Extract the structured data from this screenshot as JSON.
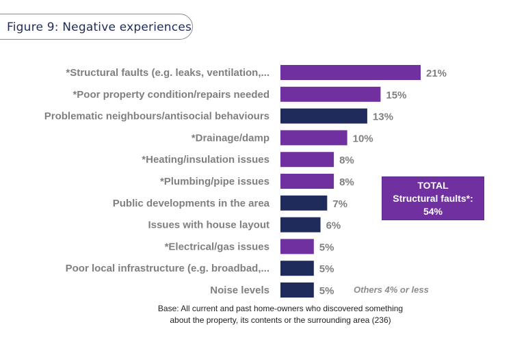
{
  "figure_title": "Figure 9: Negative experiences",
  "colors": {
    "purple": "#7030a0",
    "navy": "#1f2b5b",
    "label_grey": "#7f7f7f"
  },
  "total_box": {
    "line1": "TOTAL",
    "line2": "Structural faults*:",
    "line3": "54%",
    "color": "#7030a0"
  },
  "others_note": "Others 4% or less",
  "base_note": {
    "line1": "Base: All current and past home-owners who discovered something",
    "line2": "about the property, its contents or the surrounding area (236)"
  },
  "chart_data": {
    "type": "bar",
    "orientation": "horizontal",
    "title": "Figure 9: Negative experiences",
    "xlabel": "",
    "ylabel": "",
    "xlim": [
      0,
      21
    ],
    "grid": false,
    "categories": [
      "*Structural faults (e.g. leaks, ventilation,...",
      "*Poor property condition/repairs needed",
      "Problematic neighbours/antisocial behaviours",
      "*Drainage/damp",
      "*Heating/insulation issues",
      "*Plumbing/pipe issues",
      "Public developments in the area",
      "Issues with house layout",
      "*Electrical/gas issues",
      "Poor local infrastructure (e.g. broadbad,...",
      "Noise levels"
    ],
    "values": [
      21,
      15,
      13,
      10,
      8,
      8,
      7,
      6,
      5,
      5,
      5
    ],
    "value_labels": [
      "21%",
      "15%",
      "13%",
      "10%",
      "8%",
      "8%",
      "7%",
      "6%",
      "5%",
      "5%",
      "5%"
    ],
    "bar_colors": [
      "purple",
      "purple",
      "navy",
      "purple",
      "purple",
      "purple",
      "navy",
      "navy",
      "purple",
      "navy",
      "navy"
    ]
  }
}
